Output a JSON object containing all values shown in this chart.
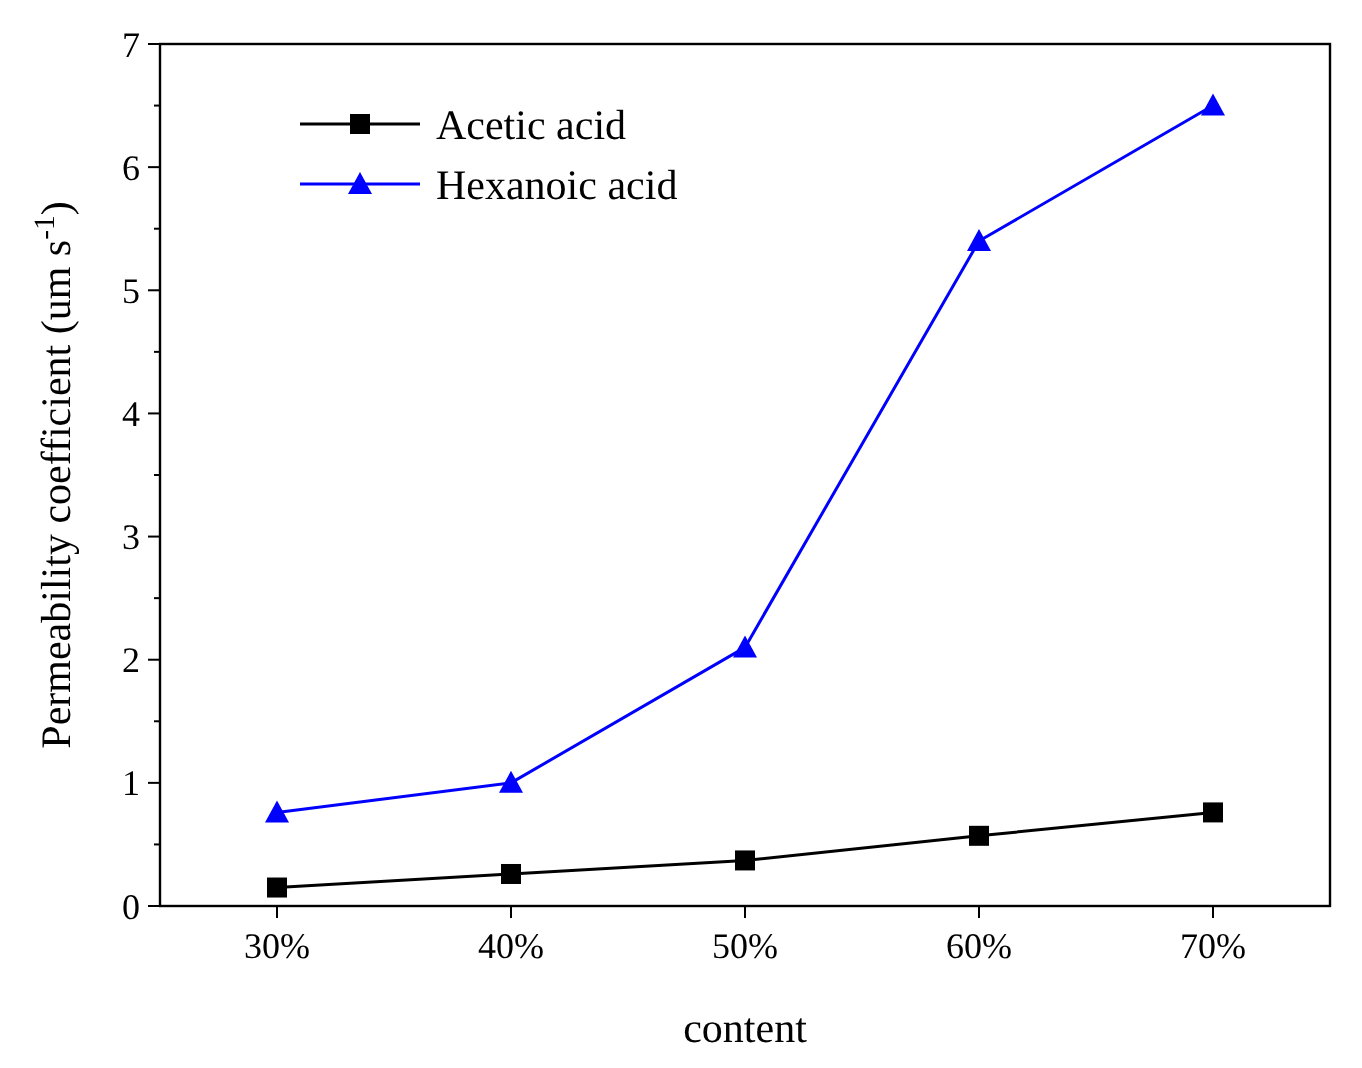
{
  "chart_data": {
    "type": "line",
    "xlabel": "content",
    "ylabel": "Permeability coefficient (um s$^{-1}$)",
    "categories": [
      "30%",
      "40%",
      "50%",
      "60%",
      "70%"
    ],
    "series": [
      {
        "name": "Acetic acid",
        "color": "#000000",
        "marker": "square",
        "values": [
          0.15,
          0.26,
          0.37,
          0.57,
          0.76
        ]
      },
      {
        "name": "Hexanoic acid",
        "color": "#0000ff",
        "marker": "triangle",
        "values": [
          0.76,
          1.0,
          2.1,
          5.4,
          6.5
        ]
      }
    ],
    "ylim": [
      0,
      7
    ],
    "yticks": [
      0,
      1,
      2,
      3,
      4,
      5,
      6,
      7
    ],
    "legend": "top left",
    "grid": false,
    "line_style": "solid"
  }
}
